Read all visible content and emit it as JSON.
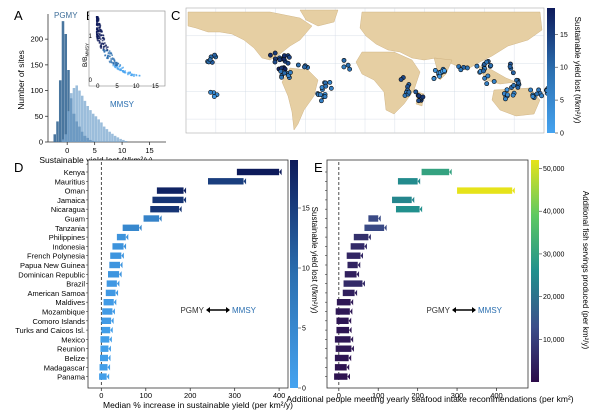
{
  "colors": {
    "dark_blue": "#0d1a5a",
    "mid_blue": "#2b6fb0",
    "light_blue": "#45a3f0",
    "hist_light": "#7aa7cf",
    "hist_dark": "#3f6f9a",
    "ocean": "#ffffff",
    "land": "#e6cfa3",
    "viridis_dark": "#2c0b4a",
    "viridis_yellow": "#e6e31a"
  },
  "chart_data": [
    {
      "panel": "A",
      "type": "bar",
      "xlabel": "Sustainable yield lost (t/km²/y)",
      "ylabel": "Number of sites",
      "xticks": [
        "0",
        "5",
        "10",
        "15"
      ],
      "yticks": [
        "0",
        "50",
        "100",
        "150",
        "200"
      ],
      "xlim": [
        -3.5,
        18
      ],
      "ylim": [
        0,
        245
      ],
      "series": [
        {
          "name": "PGMY",
          "bin_starts": [
            -2.5,
            -2,
            -1.5,
            -1,
            -0.5,
            0,
            0.5,
            1,
            1.5,
            2,
            2.5,
            3,
            3.5,
            4,
            4.5,
            5
          ],
          "values": [
            15,
            40,
            120,
            235,
            210,
            140,
            85,
            55,
            40,
            30,
            20,
            12,
            8,
            4,
            2,
            1
          ]
        },
        {
          "name": "MMSY",
          "bin_starts": [
            -1,
            -0.5,
            0,
            0.5,
            1,
            1.5,
            2,
            2.5,
            3,
            3.5,
            4,
            4.5,
            5,
            5.5,
            6,
            6.5,
            7,
            7.5,
            8,
            8.5,
            9,
            9.5,
            10,
            10.5
          ],
          "values": [
            5,
            15,
            60,
            95,
            105,
            110,
            100,
            90,
            80,
            70,
            62,
            55,
            50,
            44,
            38,
            30,
            25,
            20,
            16,
            12,
            9,
            6,
            4,
            2
          ]
        }
      ],
      "annotations": [
        "PGMY",
        "MMSY"
      ]
    },
    {
      "panel": "B",
      "type": "scatter",
      "ylabel": "B/B_MMSY",
      "xticks": [
        "0",
        "5",
        "10",
        "15"
      ],
      "yticks": [
        "0",
        "1"
      ],
      "xlim": [
        -1,
        17
      ],
      "ylim": [
        0,
        1.5
      ]
    },
    {
      "panel": "C",
      "type": "scatter",
      "description_legend": "Sustainable yield lost (t/km²/y)",
      "colorbar_ticks": [
        "0",
        "5",
        "10",
        "15"
      ],
      "colorbar_range": [
        0,
        19
      ],
      "grid": true,
      "regions": [
        {
          "lon": -155,
          "lat": 20,
          "value": 10
        },
        {
          "lon": -150,
          "lat": -17,
          "value": 4
        },
        {
          "lon": -85,
          "lat": 12,
          "value": 17
        },
        {
          "lon": -80,
          "lat": 20,
          "value": 16
        },
        {
          "lon": -90,
          "lat": 22,
          "value": 15
        },
        {
          "lon": -62,
          "lat": 12,
          "value": 9
        },
        {
          "lon": -38,
          "lat": -8,
          "value": 7
        },
        {
          "lon": -45,
          "lat": -22,
          "value": 6
        },
        {
          "lon": -80,
          "lat": 2,
          "value": 8
        },
        {
          "lon": -18,
          "lat": 14,
          "value": 8
        },
        {
          "lon": 40,
          "lat": -5,
          "value": 12
        },
        {
          "lon": 45,
          "lat": -18,
          "value": 9
        },
        {
          "lon": 57,
          "lat": -20,
          "value": 14
        },
        {
          "lon": 73,
          "lat": 4,
          "value": 3
        },
        {
          "lon": 80,
          "lat": 8,
          "value": 2
        },
        {
          "lon": 100,
          "lat": 10,
          "value": 9
        },
        {
          "lon": 115,
          "lat": 8,
          "value": 6
        },
        {
          "lon": 122,
          "lat": 12,
          "value": 10
        },
        {
          "lon": 125,
          "lat": -3,
          "value": 5
        },
        {
          "lon": 145,
          "lat": 10,
          "value": 12
        },
        {
          "lon": 150,
          "lat": -8,
          "value": 9
        },
        {
          "lon": 165,
          "lat": -18,
          "value": 5
        },
        {
          "lon": 178,
          "lat": -17,
          "value": 7
        },
        {
          "lon": 145,
          "lat": -18,
          "value": 4
        }
      ]
    },
    {
      "panel": "D",
      "type": "bar",
      "xlabel": "Median % increase in sustainable yield (per km²/y)",
      "colorbar_label": "Sustainable yield lost (t/km²/y)",
      "colorbar_ticks": [
        "0",
        "5",
        "10",
        "15"
      ],
      "colorbar_range": [
        0,
        19
      ],
      "xticks": [
        "0",
        "100",
        "200",
        "300",
        "400"
      ],
      "xlim": [
        -30,
        420
      ],
      "annotation": {
        "left": "PGMY",
        "right": "MMSY"
      },
      "categories": [
        "Kenya",
        "Mauritius",
        "Oman",
        "Jamaica",
        "Nicaragua",
        "Guam",
        "Tanzania",
        "Philippines",
        "Indonesia",
        "French Polynesia",
        "Papua New Guinea",
        "Dominican Republic",
        "Brazil",
        "American Samoa",
        "Maldives",
        "Mozambique",
        "Comoro Islands",
        "Turks and Caicos Isl.",
        "Mexico",
        "Reunion",
        "Belize",
        "Madagascar",
        "Panama"
      ],
      "ranges": [
        [
          305,
          400
        ],
        [
          240,
          320
        ],
        [
          125,
          185
        ],
        [
          115,
          185
        ],
        [
          110,
          175
        ],
        [
          95,
          130
        ],
        [
          48,
          85
        ],
        [
          35,
          55
        ],
        [
          25,
          50
        ],
        [
          20,
          45
        ],
        [
          18,
          42
        ],
        [
          15,
          40
        ],
        [
          12,
          35
        ],
        [
          10,
          32
        ],
        [
          5,
          28
        ],
        [
          2,
          25
        ],
        [
          0,
          22
        ],
        [
          0,
          20
        ],
        [
          -2,
          18
        ],
        [
          -2,
          16
        ],
        [
          -3,
          15
        ],
        [
          -4,
          14
        ],
        [
          -5,
          12
        ]
      ],
      "colors_value": [
        19,
        15,
        18,
        16,
        16,
        6,
        5,
        3,
        3,
        2.5,
        2.5,
        2.5,
        2,
        2,
        1.5,
        1.5,
        1.5,
        1,
        1,
        1,
        1,
        1,
        1
      ]
    },
    {
      "panel": "E",
      "type": "bar",
      "xlabel": "Additional people meeting yearly seafood intake recommendations (per km²)",
      "colorbar_label": "Additional fish servings produced (per km²/y)",
      "colorbar_ticks": [
        "10,000",
        "20,000",
        "30,000",
        "40,000",
        "50,000"
      ],
      "colorbar_range": [
        0,
        52000
      ],
      "xticks": [
        "0",
        "100",
        "200",
        "300",
        "400"
      ],
      "xlim": [
        -30,
        480
      ],
      "annotation": {
        "left": "PGMY",
        "right": "MMSY"
      },
      "ranges": [
        [
          210,
          280
        ],
        [
          150,
          200
        ],
        [
          300,
          440
        ],
        [
          135,
          185
        ],
        [
          145,
          205
        ],
        [
          75,
          100
        ],
        [
          65,
          115
        ],
        [
          38,
          75
        ],
        [
          30,
          65
        ],
        [
          20,
          55
        ],
        [
          22,
          48
        ],
        [
          15,
          45
        ],
        [
          12,
          60
        ],
        [
          10,
          40
        ],
        [
          -5,
          30
        ],
        [
          -8,
          28
        ],
        [
          -6,
          25
        ],
        [
          -6,
          26
        ],
        [
          -10,
          30
        ],
        [
          -8,
          32
        ],
        [
          -10,
          25
        ],
        [
          -10,
          20
        ],
        [
          -12,
          22
        ]
      ],
      "colors_value": [
        30000,
        25000,
        52000,
        24000,
        26000,
        12000,
        12000,
        7000,
        6000,
        5000,
        4500,
        4000,
        6000,
        4000,
        2500,
        2500,
        2000,
        2000,
        2500,
        2500,
        2000,
        1500,
        1500
      ]
    }
  ],
  "labels": {
    "panel_a": "A",
    "panel_b": "B",
    "panel_c": "C",
    "panel_d": "D",
    "panel_e": "E",
    "pgmy": "PGMY",
    "mmsy": "MMSY"
  }
}
